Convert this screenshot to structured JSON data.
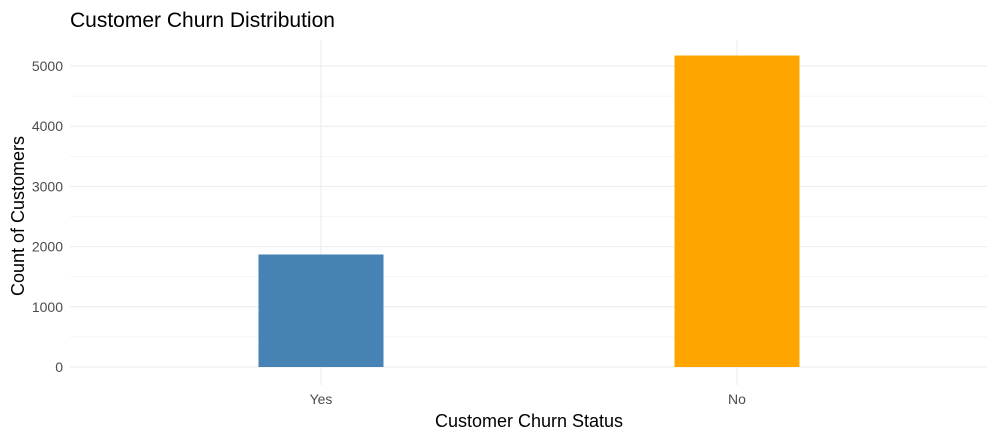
{
  "chart_data": {
    "type": "bar",
    "title": "Customer Churn Distribution",
    "xlabel": "Customer Churn Status",
    "ylabel": "Count of Customers",
    "categories": [
      "Yes",
      "No"
    ],
    "values": [
      1869,
      5174
    ],
    "colors": [
      "#4682B4",
      "#FFA500"
    ],
    "ylim": [
      0,
      5430
    ],
    "yticks": [
      0,
      1000,
      2000,
      3000,
      4000,
      5000
    ],
    "ytick_labels": [
      "0",
      "1000",
      "2000",
      "3000",
      "4000",
      "5000"
    ],
    "grid": true,
    "legend": "none"
  }
}
